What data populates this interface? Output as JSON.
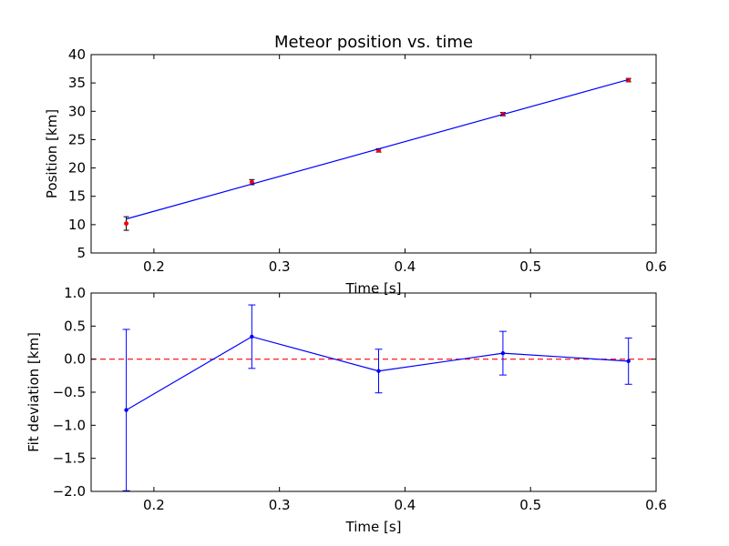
{
  "chart_data": [
    {
      "type": "scatter",
      "title": "Meteor position vs. time",
      "xlabel": "Time [s]",
      "ylabel": "Position [km]",
      "xlim": [
        0.15,
        0.6
      ],
      "ylim": [
        5,
        40
      ],
      "xticks": [
        "0.2",
        "0.3",
        "0.4",
        "0.5",
        "0.6"
      ],
      "yticks": [
        "5",
        "10",
        "15",
        "20",
        "25",
        "30",
        "35",
        "40"
      ],
      "series": [
        {
          "kind": "points",
          "color": "#ff0000",
          "errbar_color": "#000000",
          "x": [
            0.178,
            0.278,
            0.379,
            0.478,
            0.578
          ],
          "y": [
            10.2,
            17.5,
            23.1,
            29.5,
            35.5
          ],
          "yerr": [
            1.2,
            0.45,
            0.3,
            0.3,
            0.3
          ]
        },
        {
          "kind": "fit-line",
          "color": "#0000ff",
          "x": [
            0.178,
            0.578
          ],
          "y": [
            11.0,
            35.6
          ]
        }
      ]
    },
    {
      "type": "line",
      "title": "",
      "xlabel": "Time [s]",
      "ylabel": "Fit deviation [km]",
      "xlim": [
        0.15,
        0.6
      ],
      "ylim": [
        -2.0,
        1.0
      ],
      "xticks": [
        "0.2",
        "0.3",
        "0.4",
        "0.5",
        "0.6"
      ],
      "yticks": [
        "−2.0",
        "−1.5",
        "−1.0",
        "−0.5",
        "0.0",
        "0.5",
        "1.0"
      ],
      "zero_line_color": "#ff0000",
      "series": [
        {
          "kind": "errorbar-line",
          "color": "#0000ff",
          "x": [
            0.178,
            0.278,
            0.379,
            0.478,
            0.578
          ],
          "y": [
            -0.77,
            0.34,
            -0.18,
            0.09,
            -0.03
          ],
          "yerr": [
            1.22,
            0.48,
            0.33,
            0.33,
            0.35
          ]
        }
      ]
    }
  ]
}
